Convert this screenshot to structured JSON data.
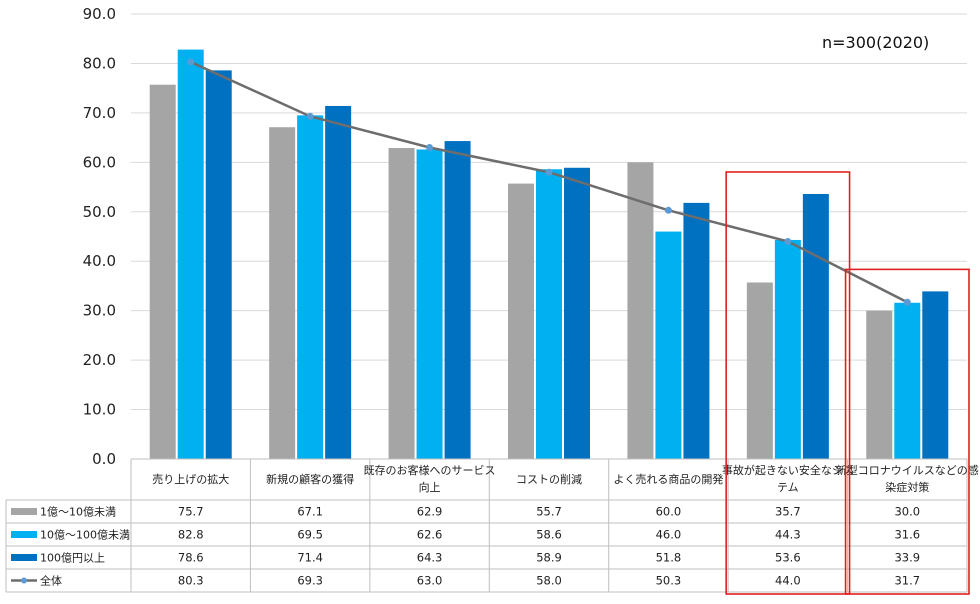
{
  "chart_data": {
    "type": "bar",
    "note": "n=300(2020)",
    "ylim": [
      0,
      90
    ],
    "yticks": [
      "0.0",
      "10.0",
      "20.0",
      "30.0",
      "40.0",
      "50.0",
      "60.0",
      "70.0",
      "80.0",
      "90.0"
    ],
    "categories": [
      [
        "売り上げの拡大"
      ],
      [
        "新規の顧客の獲得"
      ],
      [
        "既存のお客様へのサービス",
        "向上"
      ],
      [
        "コストの削減"
      ],
      [
        "よく売れる商品の開発"
      ],
      [
        "事故が起きない安全なシス",
        "テム"
      ],
      [
        "新型コロナウイルスなどの感",
        "染症対策"
      ]
    ],
    "series": [
      {
        "name": "1億～10億未満",
        "kind": "bar",
        "color": "#a5a5a5",
        "values": [
          75.7,
          67.1,
          62.9,
          55.7,
          60.0,
          35.7,
          30.0
        ],
        "labels": [
          "75.7",
          "67.1",
          "62.9",
          "55.7",
          "60.0",
          "35.7",
          "30.0"
        ]
      },
      {
        "name": "10億～100億未満",
        "kind": "bar",
        "color": "#00b0f0",
        "values": [
          82.8,
          69.5,
          62.6,
          58.6,
          46.0,
          44.3,
          31.6
        ],
        "labels": [
          "82.8",
          "69.5",
          "62.6",
          "58.6",
          "46.0",
          "44.3",
          "31.6"
        ]
      },
      {
        "name": "100億円以上",
        "kind": "bar",
        "color": "#0070c0",
        "values": [
          78.6,
          71.4,
          64.3,
          58.9,
          51.8,
          53.6,
          33.9
        ],
        "labels": [
          "78.6",
          "71.4",
          "64.3",
          "58.9",
          "51.8",
          "53.6",
          "33.9"
        ]
      },
      {
        "name": "全体",
        "kind": "line",
        "color": "#6d6d6d",
        "marker_color": "#5b9bd5",
        "values": [
          80.3,
          69.3,
          63.0,
          58.0,
          50.3,
          44.0,
          31.7
        ],
        "labels": [
          "80.3",
          "69.3",
          "63.0",
          "58.0",
          "50.3",
          "44.0",
          "31.7"
        ]
      }
    ],
    "highlight_categories": [
      5,
      6
    ],
    "highlight_color": "#e02020",
    "grid": true,
    "legend": "data-table"
  }
}
